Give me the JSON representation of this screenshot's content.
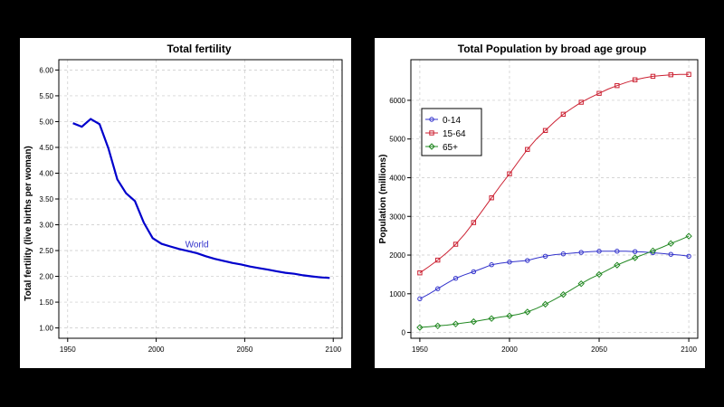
{
  "chart_data": [
    {
      "type": "line",
      "title": "Total fertility",
      "xlabel": "",
      "ylabel": "Total fertility (live births per woman)",
      "xlim": [
        1945,
        2105
      ],
      "ylim": [
        0.8,
        6.2
      ],
      "xticks": [
        1950,
        2000,
        2050,
        2100
      ],
      "yticks": [
        1.0,
        1.5,
        2.0,
        2.5,
        3.0,
        3.5,
        4.0,
        4.5,
        5.0,
        5.5,
        6.0
      ],
      "ytick_labels": [
        "1.00",
        "1.50",
        "2.00",
        "2.50",
        "3.00",
        "3.50",
        "4.00",
        "4.50",
        "5.00",
        "5.50",
        "6.00"
      ],
      "grid": true,
      "annotations": [
        {
          "text": "World",
          "x": 2023,
          "y": 2.56,
          "color": "#3333cc"
        }
      ],
      "series": [
        {
          "color": "#0000cc",
          "x": [
            1953,
            1958,
            1963,
            1968,
            1973,
            1978,
            1983,
            1988,
            1993,
            1998,
            2003,
            2008,
            2013,
            2018,
            2023,
            2028,
            2033,
            2038,
            2043,
            2048,
            2053,
            2058,
            2063,
            2068,
            2073,
            2078,
            2083,
            2088,
            2093,
            2098
          ],
          "y": [
            4.97,
            4.9,
            5.05,
            4.95,
            4.48,
            3.88,
            3.61,
            3.46,
            3.04,
            2.74,
            2.63,
            2.58,
            2.53,
            2.49,
            2.45,
            2.39,
            2.34,
            2.3,
            2.26,
            2.23,
            2.19,
            2.16,
            2.13,
            2.1,
            2.07,
            2.05,
            2.02,
            2.0,
            1.98,
            1.97
          ]
        }
      ]
    },
    {
      "type": "line",
      "title": "Total Population by broad age group",
      "xlabel": "",
      "ylabel": "Population (millions)",
      "xlim": [
        1945,
        2105
      ],
      "ylim": [
        -150,
        7050
      ],
      "xticks": [
        1950,
        2000,
        2050,
        2100
      ],
      "yticks": [
        0,
        1000,
        2000,
        3000,
        4000,
        5000,
        6000
      ],
      "grid": true,
      "legend_position": "upper-left",
      "series": [
        {
          "name": "0-14",
          "color": "#3333cc",
          "marker": "circle",
          "x": [
            1950,
            1955,
            1960,
            1965,
            1970,
            1975,
            1980,
            1985,
            1990,
            1995,
            2000,
            2005,
            2010,
            2015,
            2020,
            2025,
            2030,
            2035,
            2040,
            2045,
            2050,
            2055,
            2060,
            2065,
            2070,
            2075,
            2080,
            2085,
            2090,
            2095,
            2100
          ],
          "y": [
            870,
            990,
            1130,
            1270,
            1400,
            1490,
            1570,
            1660,
            1750,
            1790,
            1820,
            1840,
            1860,
            1920,
            1970,
            2010,
            2030,
            2050,
            2070,
            2090,
            2100,
            2100,
            2100,
            2100,
            2090,
            2080,
            2060,
            2040,
            2020,
            2000,
            1970
          ]
        },
        {
          "name": "15-64",
          "color": "#cc2233",
          "marker": "square",
          "x": [
            1950,
            1955,
            1960,
            1965,
            1970,
            1975,
            1980,
            1985,
            1990,
            1995,
            2000,
            2005,
            2010,
            2015,
            2020,
            2025,
            2030,
            2035,
            2040,
            2045,
            2050,
            2055,
            2060,
            2065,
            2070,
            2075,
            2080,
            2085,
            2090,
            2095,
            2100
          ],
          "y": [
            1540,
            1700,
            1870,
            2060,
            2280,
            2540,
            2840,
            3160,
            3480,
            3800,
            4100,
            4420,
            4730,
            5000,
            5220,
            5440,
            5640,
            5800,
            5950,
            6070,
            6180,
            6290,
            6380,
            6460,
            6530,
            6580,
            6620,
            6640,
            6660,
            6670,
            6670
          ]
        },
        {
          "name": "65+",
          "color": "#228822",
          "marker": "diamond",
          "x": [
            1950,
            1955,
            1960,
            1965,
            1970,
            1975,
            1980,
            1985,
            1990,
            1995,
            2000,
            2005,
            2010,
            2015,
            2020,
            2025,
            2030,
            2035,
            2040,
            2045,
            2050,
            2055,
            2060,
            2065,
            2070,
            2075,
            2080,
            2085,
            2090,
            2095,
            2100
          ],
          "y": [
            130,
            150,
            170,
            190,
            220,
            250,
            280,
            320,
            360,
            400,
            430,
            470,
            530,
            620,
            730,
            850,
            980,
            1120,
            1260,
            1390,
            1500,
            1620,
            1740,
            1840,
            1930,
            2020,
            2110,
            2200,
            2300,
            2390,
            2490
          ]
        }
      ]
    }
  ]
}
